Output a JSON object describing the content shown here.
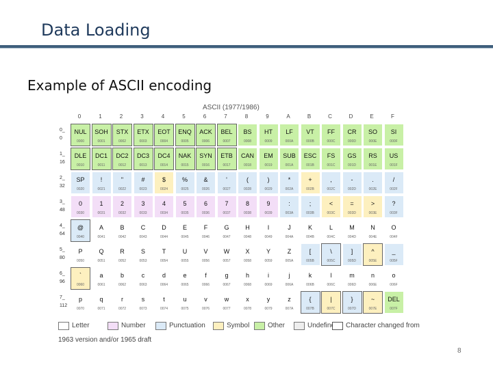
{
  "slide": {
    "title": "Data Loading",
    "subtitle": "Example of ASCII encoding",
    "page_number": "8"
  },
  "table": {
    "caption": "ASCII (1977/1986)",
    "column_headers": [
      "0",
      "1",
      "2",
      "3",
      "4",
      "5",
      "6",
      "7",
      "8",
      "9",
      "A",
      "B",
      "C",
      "D",
      "E",
      "F"
    ],
    "row_labels": [
      [
        "0_",
        "0"
      ],
      [
        "1_",
        "16"
      ],
      [
        "2_",
        "32"
      ],
      [
        "3_",
        "48"
      ],
      [
        "4_",
        "64"
      ],
      [
        "5_",
        "80"
      ],
      [
        "6_",
        "96"
      ],
      [
        "7_",
        "112"
      ]
    ],
    "colors": {
      "letter": "#ffffff",
      "number": "#f3def7",
      "punctuation": "#dbeaf7",
      "symbol": "#fdf0bf",
      "other": "#c8f0a6",
      "undefined": "#eeeeee",
      "changed_border": "#666666"
    },
    "rows": [
      [
        [
          "NUL",
          "0000",
          "o",
          1
        ],
        [
          "SOH",
          "0001",
          "o",
          1
        ],
        [
          "STX",
          "0002",
          "o",
          1
        ],
        [
          "ETX",
          "0003",
          "o",
          1
        ],
        [
          "EOT",
          "0004",
          "o",
          1
        ],
        [
          "ENQ",
          "0005",
          "o",
          1
        ],
        [
          "ACK",
          "0006",
          "o",
          1
        ],
        [
          "BEL",
          "0007",
          "o",
          1
        ],
        [
          "BS",
          "0008",
          "o",
          0
        ],
        [
          "HT",
          "0009",
          "o",
          0
        ],
        [
          "LF",
          "000A",
          "o",
          0
        ],
        [
          "VT",
          "000B",
          "o",
          0
        ],
        [
          "FF",
          "000C",
          "o",
          0
        ],
        [
          "CR",
          "000D",
          "o",
          0
        ],
        [
          "SO",
          "000E",
          "o",
          0
        ],
        [
          "SI",
          "000F",
          "o",
          0
        ]
      ],
      [
        [
          "DLE",
          "0010",
          "o",
          1
        ],
        [
          "DC1",
          "0011",
          "o",
          1
        ],
        [
          "DC2",
          "0012",
          "o",
          1
        ],
        [
          "DC3",
          "0013",
          "o",
          1
        ],
        [
          "DC4",
          "0014",
          "o",
          1
        ],
        [
          "NAK",
          "0015",
          "o",
          1
        ],
        [
          "SYN",
          "0016",
          "o",
          1
        ],
        [
          "ETB",
          "0017",
          "o",
          1
        ],
        [
          "CAN",
          "0018",
          "o",
          0
        ],
        [
          "EM",
          "0019",
          "o",
          0
        ],
        [
          "SUB",
          "001A",
          "o",
          0
        ],
        [
          "ESC",
          "001B",
          "o",
          0
        ],
        [
          "FS",
          "001C",
          "o",
          0
        ],
        [
          "GS",
          "001D",
          "o",
          0
        ],
        [
          "RS",
          "001E",
          "o",
          0
        ],
        [
          "US",
          "001F",
          "o",
          0
        ]
      ],
      [
        [
          "SP",
          "0020",
          "p",
          0
        ],
        [
          "!",
          "0021",
          "p",
          0
        ],
        [
          "\"",
          "0022",
          "p",
          0
        ],
        [
          "#",
          "0023",
          "p",
          0
        ],
        [
          "$",
          "0024",
          "s",
          0
        ],
        [
          "%",
          "0025",
          "p",
          0
        ],
        [
          "&",
          "0026",
          "p",
          0
        ],
        [
          "'",
          "0027",
          "p",
          0
        ],
        [
          "(",
          "0028",
          "p",
          0
        ],
        [
          ")",
          "0029",
          "p",
          0
        ],
        [
          "*",
          "002A",
          "p",
          0
        ],
        [
          "+",
          "002B",
          "s",
          0
        ],
        [
          ",",
          "002C",
          "p",
          0
        ],
        [
          "-",
          "002D",
          "p",
          0
        ],
        [
          ".",
          "002E",
          "p",
          0
        ],
        [
          "/",
          "002F",
          "p",
          0
        ]
      ],
      [
        [
          "0",
          "0030",
          "n",
          0
        ],
        [
          "1",
          "0031",
          "n",
          0
        ],
        [
          "2",
          "0032",
          "n",
          0
        ],
        [
          "3",
          "0033",
          "n",
          0
        ],
        [
          "4",
          "0034",
          "n",
          0
        ],
        [
          "5",
          "0035",
          "n",
          0
        ],
        [
          "6",
          "0036",
          "n",
          0
        ],
        [
          "7",
          "0037",
          "n",
          0
        ],
        [
          "8",
          "0038",
          "n",
          0
        ],
        [
          "9",
          "0039",
          "n",
          0
        ],
        [
          ":",
          "003A",
          "p",
          0
        ],
        [
          ";",
          "003B",
          "p",
          0
        ],
        [
          "<",
          "003C",
          "s",
          0
        ],
        [
          "=",
          "003D",
          "s",
          0
        ],
        [
          ">",
          "003E",
          "s",
          0
        ],
        [
          "?",
          "003F",
          "p",
          0
        ]
      ],
      [
        [
          "@",
          "0040",
          "p",
          1
        ],
        [
          "A",
          "0041",
          "l",
          0
        ],
        [
          "B",
          "0042",
          "l",
          0
        ],
        [
          "C",
          "0043",
          "l",
          0
        ],
        [
          "D",
          "0044",
          "l",
          0
        ],
        [
          "E",
          "0045",
          "l",
          0
        ],
        [
          "F",
          "0046",
          "l",
          0
        ],
        [
          "G",
          "0047",
          "l",
          0
        ],
        [
          "H",
          "0048",
          "l",
          0
        ],
        [
          "I",
          "0049",
          "l",
          0
        ],
        [
          "J",
          "004A",
          "l",
          0
        ],
        [
          "K",
          "004B",
          "l",
          0
        ],
        [
          "L",
          "004C",
          "l",
          0
        ],
        [
          "M",
          "004D",
          "l",
          0
        ],
        [
          "N",
          "004E",
          "l",
          0
        ],
        [
          "O",
          "004F",
          "l",
          0
        ]
      ],
      [
        [
          "P",
          "0050",
          "l",
          0
        ],
        [
          "Q",
          "0051",
          "l",
          0
        ],
        [
          "R",
          "0052",
          "l",
          0
        ],
        [
          "S",
          "0053",
          "l",
          0
        ],
        [
          "T",
          "0054",
          "l",
          0
        ],
        [
          "U",
          "0055",
          "l",
          0
        ],
        [
          "V",
          "0056",
          "l",
          0
        ],
        [
          "W",
          "0057",
          "l",
          0
        ],
        [
          "X",
          "0058",
          "l",
          0
        ],
        [
          "Y",
          "0059",
          "l",
          0
        ],
        [
          "Z",
          "005A",
          "l",
          0
        ],
        [
          "[",
          "005B",
          "p",
          0
        ],
        [
          "\\",
          "005C",
          "p",
          1
        ],
        [
          "]",
          "005D",
          "p",
          0
        ],
        [
          "^",
          "005E",
          "s",
          1
        ],
        [
          "_",
          "005F",
          "p",
          0
        ]
      ],
      [
        [
          "`",
          "0060",
          "s",
          1
        ],
        [
          "a",
          "0061",
          "l",
          0
        ],
        [
          "b",
          "0062",
          "l",
          0
        ],
        [
          "c",
          "0063",
          "l",
          0
        ],
        [
          "d",
          "0064",
          "l",
          0
        ],
        [
          "e",
          "0065",
          "l",
          0
        ],
        [
          "f",
          "0066",
          "l",
          0
        ],
        [
          "g",
          "0067",
          "l",
          0
        ],
        [
          "h",
          "0068",
          "l",
          0
        ],
        [
          "i",
          "0069",
          "l",
          0
        ],
        [
          "j",
          "006A",
          "l",
          0
        ],
        [
          "k",
          "006B",
          "l",
          0
        ],
        [
          "l",
          "006C",
          "l",
          0
        ],
        [
          "m",
          "006D",
          "l",
          0
        ],
        [
          "n",
          "006E",
          "l",
          0
        ],
        [
          "o",
          "006F",
          "l",
          0
        ]
      ],
      [
        [
          "p",
          "0070",
          "l",
          0
        ],
        [
          "q",
          "0071",
          "l",
          0
        ],
        [
          "r",
          "0072",
          "l",
          0
        ],
        [
          "s",
          "0073",
          "l",
          0
        ],
        [
          "t",
          "0074",
          "l",
          0
        ],
        [
          "u",
          "0075",
          "l",
          0
        ],
        [
          "v",
          "0076",
          "l",
          0
        ],
        [
          "w",
          "0077",
          "l",
          0
        ],
        [
          "x",
          "0078",
          "l",
          0
        ],
        [
          "y",
          "0079",
          "l",
          0
        ],
        [
          "z",
          "007A",
          "l",
          0
        ],
        [
          "{",
          "007B",
          "p",
          1
        ],
        [
          "|",
          "007C",
          "s",
          1
        ],
        [
          "}",
          "007D",
          "p",
          1
        ],
        [
          "~",
          "007E",
          "s",
          1
        ],
        [
          "DEL",
          "007F",
          "o",
          0
        ]
      ]
    ]
  },
  "legend": {
    "items": [
      {
        "label": "Letter",
        "color": "#ffffff"
      },
      {
        "label": "Number",
        "color": "#f3def7"
      },
      {
        "label": "Punctuation",
        "color": "#dbeaf7"
      },
      {
        "label": "Symbol",
        "color": "#fdf0bf"
      },
      {
        "label": "Other",
        "color": "#c8f0a6"
      },
      {
        "label": "Undefined",
        "color": "#eeeeee"
      },
      {
        "label": "Character changed from",
        "color": "#ffffff"
      }
    ],
    "note": "1963 version and/or 1965 draft"
  }
}
